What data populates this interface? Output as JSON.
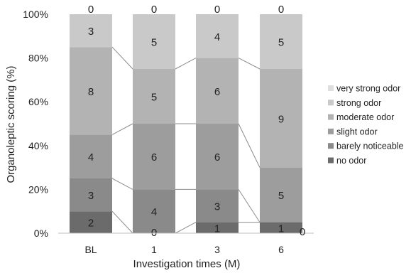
{
  "chart_data": {
    "type": "bar",
    "stacked": "percent",
    "xlabel": "Investigation times (M)",
    "ylabel": "Organoleptic scoring (%)",
    "categories": [
      "BL",
      "1",
      "3",
      "6"
    ],
    "ylim": [
      0,
      100
    ],
    "y_ticks": [
      "0%",
      "20%",
      "40%",
      "60%",
      "80%",
      "100%"
    ],
    "legend_position": "right",
    "series": [
      {
        "name": "no odor",
        "values": [
          2,
          0,
          1,
          1
        ],
        "color": "#6b6b6b"
      },
      {
        "name": "barely noticeable",
        "values": [
          3,
          4,
          3,
          0
        ],
        "color": "#8a8a8a"
      },
      {
        "name": "slight odor",
        "values": [
          4,
          6,
          6,
          5
        ],
        "color": "#9d9d9d"
      },
      {
        "name": "moderate odor",
        "values": [
          8,
          5,
          6,
          9
        ],
        "color": "#b3b3b3"
      },
      {
        "name": "strong odor",
        "values": [
          3,
          5,
          4,
          5
        ],
        "color": "#c9c9c9"
      },
      {
        "name": "very strong odor",
        "values": [
          0,
          0,
          0,
          0
        ],
        "color": "#dedede"
      }
    ],
    "extra_label": "0",
    "connector_lines": true
  }
}
